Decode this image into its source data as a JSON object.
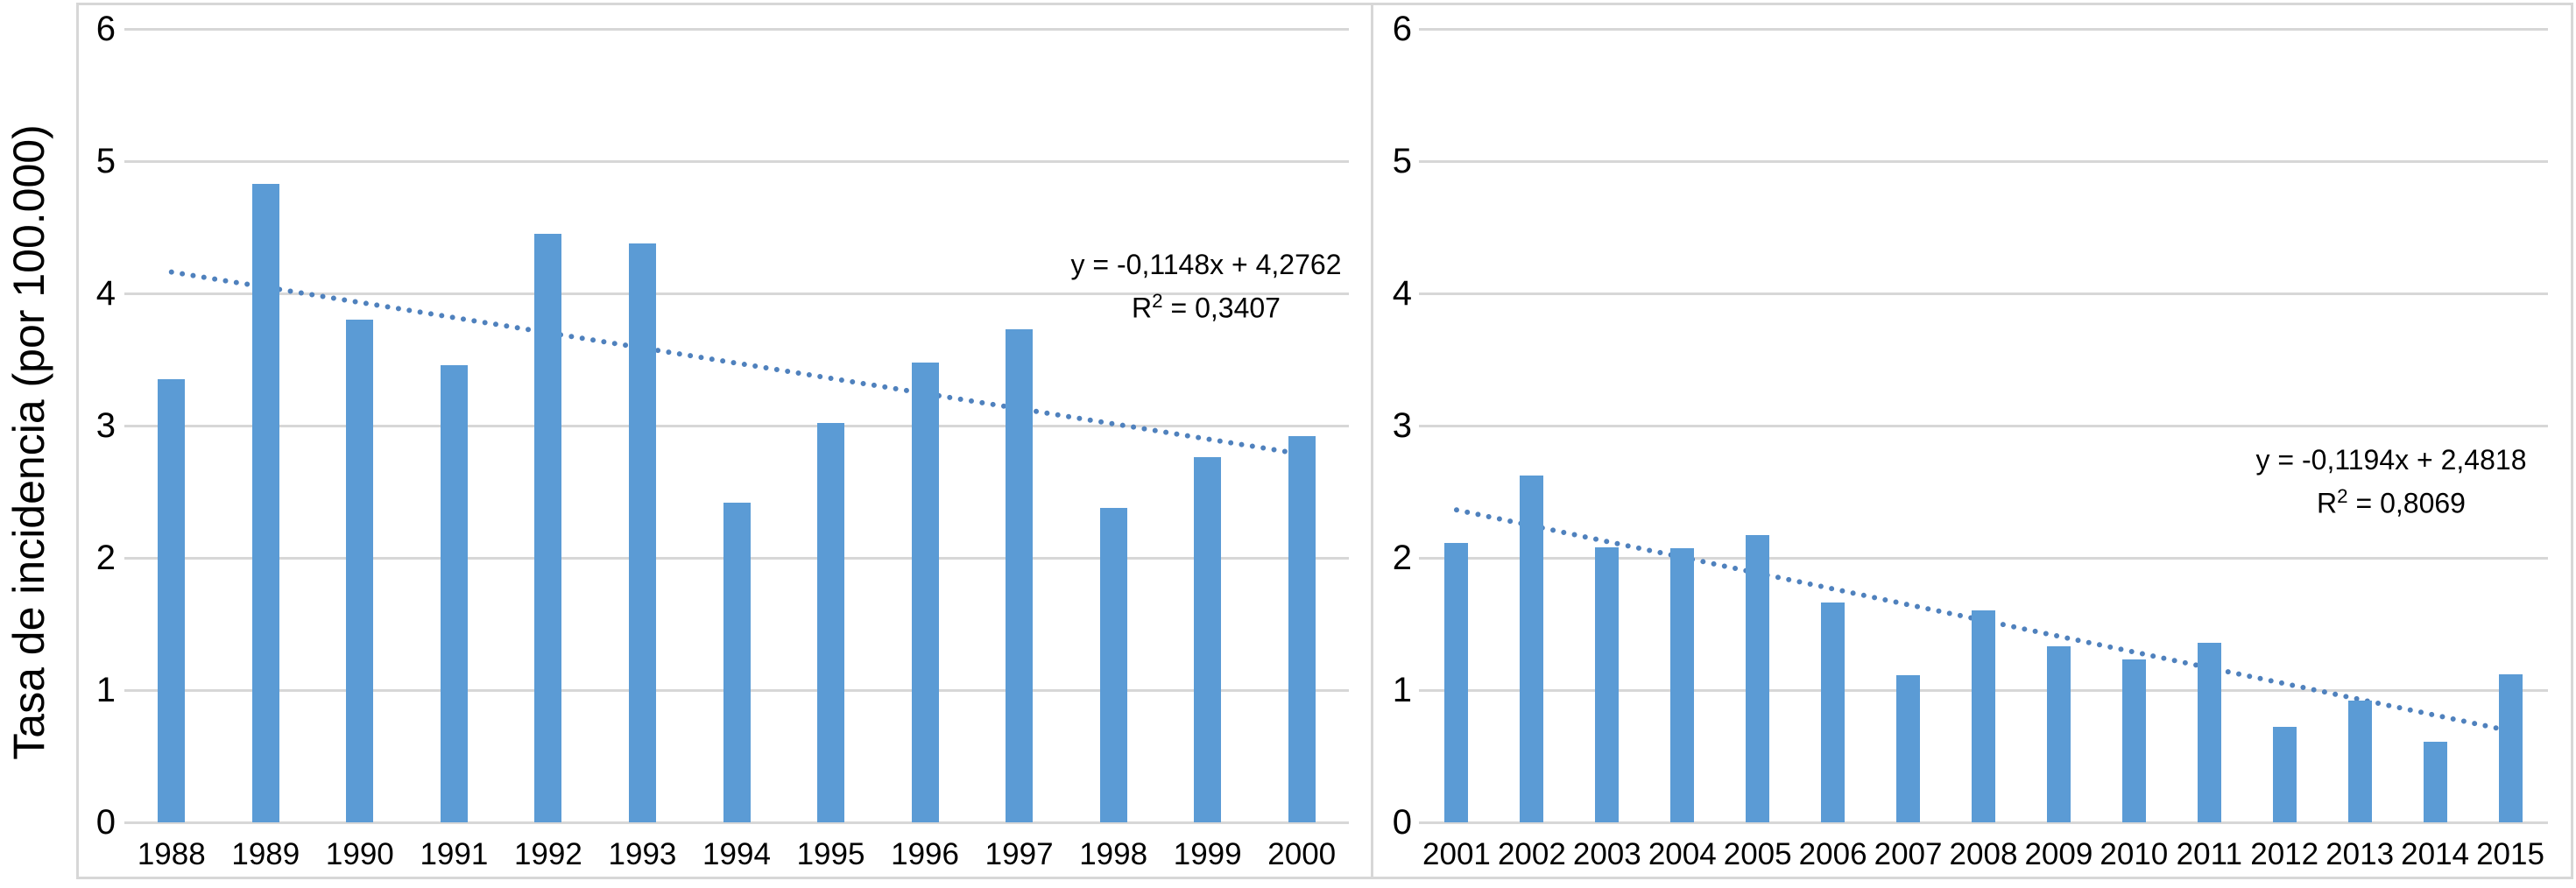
{
  "figure": {
    "y_axis_title": "Tasa de incidencia (por 100.000)"
  },
  "colors": {
    "bar": "#5b9bd5",
    "trendline": "#4f81bd",
    "gridline": "#d7d7d7",
    "panel_border": "#d7d7d7",
    "text": "#000000"
  },
  "chart_data": [
    {
      "type": "bar",
      "panel": "left",
      "title": "",
      "xlabel": "",
      "ylabel": "Tasa de incidencia (por 100.000)",
      "ylim": [
        0,
        6
      ],
      "yticks": [
        0,
        1,
        2,
        3,
        4,
        5,
        6
      ],
      "grid": true,
      "legend": "none",
      "categories": [
        "1988",
        "1989",
        "1990",
        "1991",
        "1992",
        "1993",
        "1994",
        "1995",
        "1996",
        "1997",
        "1998",
        "1999",
        "2000"
      ],
      "values": [
        3.35,
        4.83,
        3.8,
        3.46,
        4.45,
        4.38,
        2.42,
        3.02,
        3.48,
        3.73,
        2.38,
        2.76,
        2.92
      ],
      "trendline": {
        "type": "linear",
        "style": "dotted",
        "slope": -0.1148,
        "intercept": 4.2762,
        "r2": 0.3407,
        "eq_line1": "y = -0,1148x + 4,2762",
        "r2_base": "R",
        "r2_sup": "2",
        "r2_rest": " = 0,3407"
      }
    },
    {
      "type": "bar",
      "panel": "right",
      "title": "",
      "xlabel": "",
      "ylabel": "Tasa de incidencia (por 100.000)",
      "ylim": [
        0,
        6
      ],
      "yticks": [
        0,
        1,
        2,
        3,
        4,
        5,
        6
      ],
      "grid": true,
      "legend": "none",
      "categories": [
        "2001",
        "2002",
        "2003",
        "2004",
        "2005",
        "2006",
        "2007",
        "2008",
        "2009",
        "2010",
        "2011",
        "2012",
        "2013",
        "2014",
        "2015"
      ],
      "values": [
        2.11,
        2.62,
        2.08,
        2.07,
        2.17,
        1.66,
        1.11,
        1.6,
        1.33,
        1.23,
        1.36,
        0.72,
        0.92,
        0.61,
        1.12
      ],
      "trendline": {
        "type": "linear",
        "style": "dotted",
        "slope": -0.1194,
        "intercept": 2.4818,
        "r2": 0.8069,
        "eq_line1": "y = -0,1194x + 2,4818",
        "r2_base": "R",
        "r2_sup": "2",
        "r2_rest": " = 0,8069"
      }
    }
  ]
}
